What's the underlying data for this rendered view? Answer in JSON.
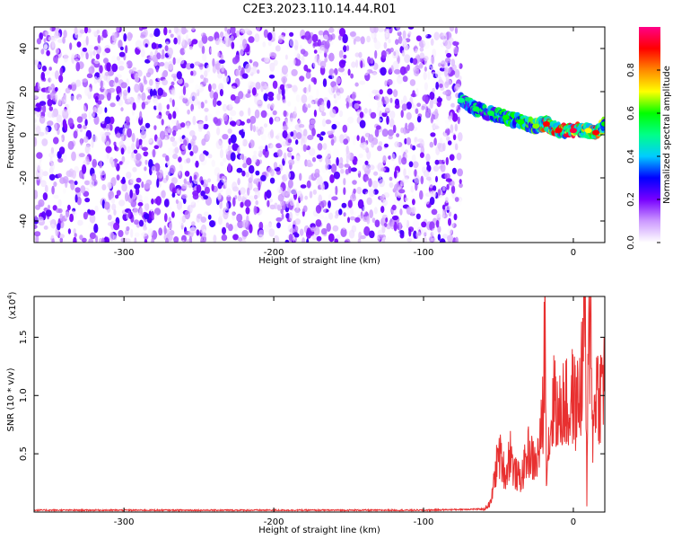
{
  "title": "C2E3.2023.110.14.44.R01",
  "chart_data": [
    {
      "type": "heatmap",
      "xlabel": "Height of straight line (km)",
      "ylabel": "Frequency (Hz)",
      "xlim": [
        -360,
        21
      ],
      "ylim": [
        -50,
        50
      ],
      "xticks": [
        -300,
        -200,
        -100,
        0
      ],
      "yticks": [
        -40,
        -20,
        0,
        20,
        40
      ],
      "grid": false,
      "colorbar": {
        "label": "Normalized spectral amplitude",
        "range": [
          0,
          1
        ],
        "ticks": [
          "0.0",
          "0.2",
          "0.4",
          "0.6",
          "0.8"
        ],
        "colors": [
          "#ffffff",
          "#cc99ff",
          "#7700ff",
          "#0000ff",
          "#00ccff",
          "#00ff88",
          "#00ff00",
          "#ffff00",
          "#ff8800",
          "#ff0000",
          "#ff0088"
        ]
      },
      "noise_region": {
        "x_range": [
          -360,
          -75
        ],
        "y_range": [
          -50,
          50
        ],
        "amplitude_range": [
          0.0,
          0.25
        ]
      },
      "signal_track": [
        {
          "x": -75,
          "y": 16,
          "amplitude": 0.5
        },
        {
          "x": -65,
          "y": 12,
          "amplitude": 0.55
        },
        {
          "x": -55,
          "y": 10,
          "amplitude": 0.55
        },
        {
          "x": -45,
          "y": 8,
          "amplitude": 0.6
        },
        {
          "x": -35,
          "y": 6,
          "amplitude": 0.6
        },
        {
          "x": -25,
          "y": 4,
          "amplitude": 0.65
        },
        {
          "x": -18,
          "y": 5,
          "amplitude": 0.9
        },
        {
          "x": -10,
          "y": 2,
          "amplitude": 0.9
        },
        {
          "x": 0,
          "y": 2,
          "amplitude": 0.95
        },
        {
          "x": 10,
          "y": 2,
          "amplitude": 0.7
        },
        {
          "x": 15,
          "y": 1,
          "amplitude": 0.9
        },
        {
          "x": 21,
          "y": 5,
          "amplitude": 0.6
        }
      ]
    },
    {
      "type": "line",
      "xlabel": "Height of straight line (km)",
      "ylabel": "SNR (10 * v/v)",
      "scale_label": "(x10",
      "scale_exponent": "4",
      "scale_suffix": ")",
      "xlim": [
        -360,
        21
      ],
      "ylim": [
        0,
        1.85
      ],
      "xticks": [
        -300,
        -200,
        -100,
        0
      ],
      "yticks": [
        "0.5",
        "1.0",
        "1.5"
      ],
      "color": "#e83030",
      "grid": false,
      "series": [
        {
          "x": [
            -360,
            -100,
            -60,
            -55,
            -52,
            -50,
            -48,
            -45,
            -42,
            -40,
            -35,
            -30,
            -25,
            -22,
            -20,
            -19,
            -18,
            -15,
            -12,
            -10,
            -8,
            -5,
            -3,
            -1,
            2,
            5,
            8,
            9,
            10,
            12,
            13,
            15,
            18,
            21
          ],
          "y": [
            0.01,
            0.01,
            0.02,
            0.08,
            0.35,
            0.5,
            0.45,
            0.3,
            0.55,
            0.35,
            0.28,
            0.52,
            0.4,
            0.6,
            0.9,
            1.72,
            0.4,
            0.75,
            1.05,
            0.75,
            0.9,
            0.95,
            0.8,
            1.0,
            0.9,
            1.05,
            1.85,
            0.05,
            1.3,
            1.75,
            0.6,
            1.1,
            1.0,
            1.25
          ]
        }
      ]
    }
  ]
}
